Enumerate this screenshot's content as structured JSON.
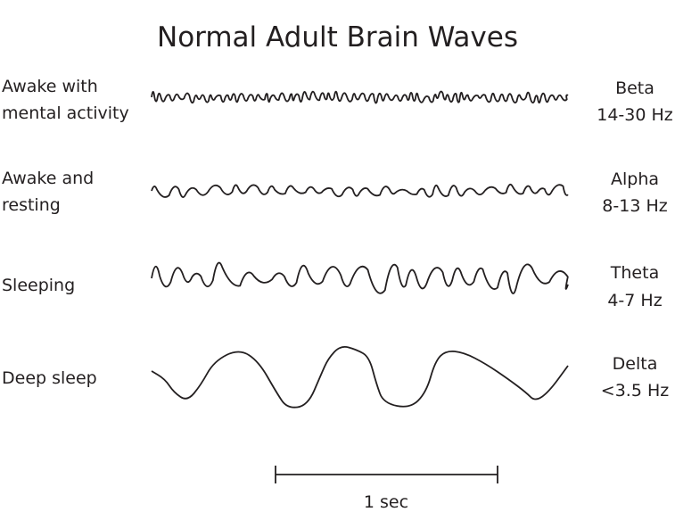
{
  "title": "Normal Adult Brain Waves",
  "rows": [
    {
      "state": [
        "Awake with",
        "mental activity"
      ],
      "wave": "Beta",
      "range": "14-30 Hz"
    },
    {
      "state": [
        "Awake and",
        "resting"
      ],
      "wave": "Alpha",
      "range": "8-13 Hz"
    },
    {
      "state": [
        "Sleeping"
      ],
      "wave": "Theta",
      "range": "4-7 Hz"
    },
    {
      "state": [
        "Deep sleep"
      ],
      "wave": "Delta",
      "range": "<3.5 Hz"
    }
  ],
  "scale_bar": {
    "label": "1 sec"
  },
  "colors": {
    "ink": "#231f20"
  }
}
